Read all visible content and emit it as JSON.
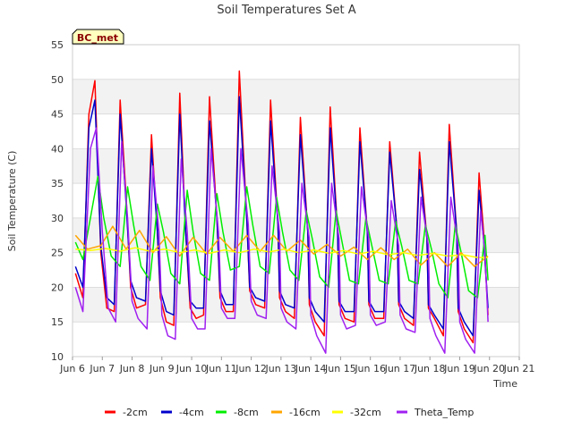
{
  "chart_data": {
    "type": "line",
    "title": "Soil Temperatures Set A",
    "xlabel": "Time",
    "ylabel": "Soil Temperature (C)",
    "site_label": "BC_met",
    "xlim": [
      6,
      21
    ],
    "ylim": [
      10,
      55
    ],
    "x_ticks": [
      {
        "x": 6,
        "label": "Jun 6"
      },
      {
        "x": 7,
        "label": "Jun 7"
      },
      {
        "x": 8,
        "label": "Jun 8"
      },
      {
        "x": 9,
        "label": "Jun 9"
      },
      {
        "x": 10,
        "label": "Jun 10"
      },
      {
        "x": 11,
        "label": "Jun 11"
      },
      {
        "x": 12,
        "label": "Jun 12"
      },
      {
        "x": 13,
        "label": "Jun 13"
      },
      {
        "x": 14,
        "label": "Jun 14"
      },
      {
        "x": 15,
        "label": "Jun 15"
      },
      {
        "x": 16,
        "label": "Jun 16"
      },
      {
        "x": 17,
        "label": "Jun 17"
      },
      {
        "x": 18,
        "label": "Jun 18"
      },
      {
        "x": 19,
        "label": "Jun 19"
      },
      {
        "x": 20,
        "label": "Jun 20"
      },
      {
        "x": 21,
        "label": "Jun 21"
      }
    ],
    "y_ticks": [
      10,
      15,
      20,
      25,
      30,
      35,
      40,
      45,
      50,
      55
    ],
    "grid": true,
    "legend_position": "bottom",
    "series": [
      {
        "name": "-2cm",
        "color": "#ff0000",
        "x": [
          6.1,
          6.35,
          6.55,
          6.75,
          6.95,
          7.15,
          7.4,
          7.6,
          7.8,
          7.95,
          8.15,
          8.45,
          8.65,
          8.85,
          8.95,
          9.15,
          9.4,
          9.6,
          9.8,
          9.95,
          10.15,
          10.4,
          10.6,
          10.85,
          10.95,
          11.15,
          11.4,
          11.6,
          11.85,
          11.95,
          12.15,
          12.45,
          12.65,
          12.9,
          12.95,
          13.15,
          13.45,
          13.65,
          13.9,
          13.95,
          14.15,
          14.45,
          14.65,
          14.9,
          14.95,
          15.15,
          15.45,
          15.65,
          15.9,
          15.95,
          16.15,
          16.45,
          16.65,
          16.9,
          16.95,
          17.15,
          17.45,
          17.65,
          17.9,
          17.95,
          18.15,
          18.45,
          18.65,
          18.9,
          18.95,
          19.15,
          19.45,
          19.65,
          19.8,
          19.95
        ],
        "y": [
          22,
          18.5,
          45,
          49.8,
          25,
          17,
          16.5,
          47,
          33,
          20,
          17,
          17.5,
          42,
          28,
          18.5,
          15,
          14.5,
          48,
          28,
          17,
          15.5,
          16,
          47.5,
          30,
          18.5,
          16.5,
          16.5,
          51.2,
          30,
          19.5,
          17.5,
          17,
          47,
          29,
          18.5,
          16.5,
          15.5,
          44.5,
          28,
          17.5,
          15,
          13,
          46,
          28,
          17.5,
          15.5,
          15,
          43,
          28,
          17.5,
          15.5,
          15.5,
          41,
          28,
          17.5,
          15.5,
          14.5,
          39.5,
          27,
          17,
          15.5,
          13,
          43.5,
          28,
          16.5,
          14,
          12,
          36.5,
          28,
          16
        ]
      },
      {
        "name": "-4cm",
        "color": "#0000cc",
        "x": [
          6.1,
          6.35,
          6.55,
          6.75,
          6.95,
          7.15,
          7.4,
          7.6,
          7.8,
          7.95,
          8.15,
          8.45,
          8.65,
          8.85,
          8.95,
          9.15,
          9.4,
          9.6,
          9.8,
          9.95,
          10.15,
          10.4,
          10.6,
          10.85,
          10.95,
          11.15,
          11.4,
          11.6,
          11.85,
          11.95,
          12.15,
          12.45,
          12.65,
          12.9,
          12.95,
          13.15,
          13.45,
          13.65,
          13.9,
          13.95,
          14.15,
          14.45,
          14.65,
          14.9,
          14.95,
          15.15,
          15.45,
          15.65,
          15.9,
          15.95,
          16.15,
          16.45,
          16.65,
          16.9,
          16.95,
          17.15,
          17.45,
          17.65,
          17.9,
          17.95,
          18.15,
          18.45,
          18.65,
          18.9,
          18.95,
          19.15,
          19.45,
          19.65,
          19.8,
          19.95
        ],
        "y": [
          23,
          20,
          43,
          47,
          26,
          18.5,
          17.5,
          45,
          32,
          21,
          18.5,
          18,
          40,
          28,
          19.5,
          16.5,
          16,
          45,
          28,
          18,
          17,
          17,
          44,
          30,
          19.5,
          17.5,
          17.5,
          47.5,
          30,
          20,
          18.5,
          18,
          44,
          29,
          19.5,
          17.5,
          17,
          42,
          28,
          18.5,
          16.5,
          15,
          43,
          28,
          18,
          16.5,
          16.5,
          41,
          28,
          18,
          16.5,
          16.5,
          39.5,
          28,
          18,
          16.5,
          15.5,
          37,
          27,
          17.5,
          16,
          14,
          41,
          28,
          17,
          15,
          13,
          34,
          27,
          17
        ]
      },
      {
        "name": "-8cm",
        "color": "#00ee00",
        "x": [
          6.1,
          6.35,
          6.6,
          6.85,
          7.05,
          7.3,
          7.6,
          7.85,
          8.05,
          8.3,
          8.6,
          8.85,
          9.05,
          9.3,
          9.6,
          9.85,
          10.05,
          10.3,
          10.6,
          10.85,
          11.05,
          11.3,
          11.6,
          11.85,
          12.05,
          12.3,
          12.6,
          12.85,
          13.05,
          13.3,
          13.6,
          13.85,
          14.05,
          14.3,
          14.6,
          14.85,
          15.05,
          15.3,
          15.6,
          15.85,
          16.05,
          16.3,
          16.6,
          16.85,
          17.05,
          17.3,
          17.6,
          17.85,
          18.05,
          18.3,
          18.6,
          18.85,
          19.05,
          19.3,
          19.6,
          19.85,
          19.95
        ],
        "y": [
          26.5,
          24,
          30,
          36,
          30,
          24.5,
          23,
          34.5,
          29,
          23,
          21,
          32,
          28,
          22,
          20.5,
          34,
          28,
          22,
          21,
          33.5,
          28,
          22.5,
          23,
          34.5,
          29,
          23,
          22,
          33,
          28,
          22.5,
          21,
          31,
          27,
          21.5,
          20,
          31,
          26.5,
          21,
          20.5,
          30,
          26,
          21,
          20.5,
          29.5,
          26,
          21,
          20.5,
          29,
          25.5,
          20.5,
          18.5,
          29,
          25,
          19.5,
          18.5,
          27.5,
          21
        ]
      },
      {
        "name": "-16cm",
        "color": "#ffa500",
        "x": [
          6.1,
          6.5,
          6.95,
          7.35,
          7.8,
          8.25,
          8.7,
          9.15,
          9.6,
          10.05,
          10.5,
          10.95,
          11.4,
          11.85,
          12.3,
          12.75,
          13.2,
          13.65,
          14.1,
          14.55,
          15.0,
          15.45,
          15.9,
          16.35,
          16.8,
          17.25,
          17.7,
          18.15,
          18.6,
          19.05,
          19.5,
          19.95
        ],
        "y": [
          27.5,
          25.5,
          26,
          28.8,
          25.5,
          28.2,
          25,
          27.3,
          24.5,
          27.2,
          24.8,
          27.2,
          25.2,
          27.5,
          25.2,
          27.5,
          25.2,
          26.8,
          24.8,
          26.2,
          24.5,
          25.8,
          24,
          25.7,
          24,
          25.5,
          23.2,
          25,
          23,
          25,
          23,
          24.5
        ]
      },
      {
        "name": "-32cm",
        "color": "#ffff00",
        "x": [
          6.1,
          6.6,
          7.1,
          7.6,
          8.1,
          8.6,
          9.1,
          9.6,
          10.1,
          10.6,
          11.1,
          11.6,
          12.1,
          12.6,
          13.1,
          13.6,
          14.1,
          14.6,
          15.1,
          15.6,
          16.1,
          16.6,
          17.1,
          17.6,
          18.1,
          18.6,
          19.1,
          19.6,
          19.95
        ],
        "y": [
          25.5,
          25.3,
          25.6,
          25.2,
          25.7,
          25.2,
          25.5,
          25.0,
          25.4,
          24.9,
          25.4,
          25.0,
          25.5,
          25.1,
          25.5,
          25.0,
          25.4,
          24.9,
          25.3,
          24.8,
          25.2,
          24.7,
          25.0,
          24.6,
          24.9,
          24.5,
          24.7,
          24.3,
          24.3
        ]
      },
      {
        "name": "Theta_Temp",
        "color": "#a020f0",
        "x": [
          6.1,
          6.35,
          6.6,
          6.8,
          7.0,
          7.2,
          7.45,
          7.65,
          7.85,
          8.0,
          8.2,
          8.5,
          8.7,
          8.9,
          9.0,
          9.2,
          9.45,
          9.65,
          9.85,
          10.0,
          10.2,
          10.45,
          10.65,
          10.9,
          11.0,
          11.2,
          11.45,
          11.65,
          11.9,
          12.0,
          12.2,
          12.5,
          12.7,
          12.95,
          13.0,
          13.2,
          13.5,
          13.7,
          13.95,
          14.0,
          14.2,
          14.5,
          14.7,
          14.95,
          15.0,
          15.2,
          15.5,
          15.7,
          15.95,
          16.0,
          16.2,
          16.5,
          16.7,
          16.95,
          17.0,
          17.2,
          17.5,
          17.7,
          17.95,
          18.0,
          18.2,
          18.5,
          18.7,
          18.95,
          19.0,
          19.2,
          19.5,
          19.7,
          19.85,
          19.95
        ],
        "y": [
          20,
          16.5,
          40,
          43,
          28,
          17,
          15,
          41,
          30,
          18,
          15.5,
          14,
          37.5,
          28,
          16,
          13,
          12.5,
          38.5,
          28,
          15.5,
          14,
          14,
          40,
          28,
          17,
          15.5,
          15.5,
          40,
          29,
          18,
          16,
          15.5,
          37.5,
          28,
          17,
          15,
          14,
          35,
          27,
          16,
          13,
          10.5,
          35,
          27,
          16,
          14,
          14.5,
          34.5,
          27,
          16,
          14.5,
          15,
          32.5,
          26,
          16,
          14,
          13.5,
          33,
          26,
          15.5,
          13,
          10.5,
          33,
          26,
          15,
          12.5,
          10.5,
          31,
          25,
          15
        ]
      }
    ]
  }
}
